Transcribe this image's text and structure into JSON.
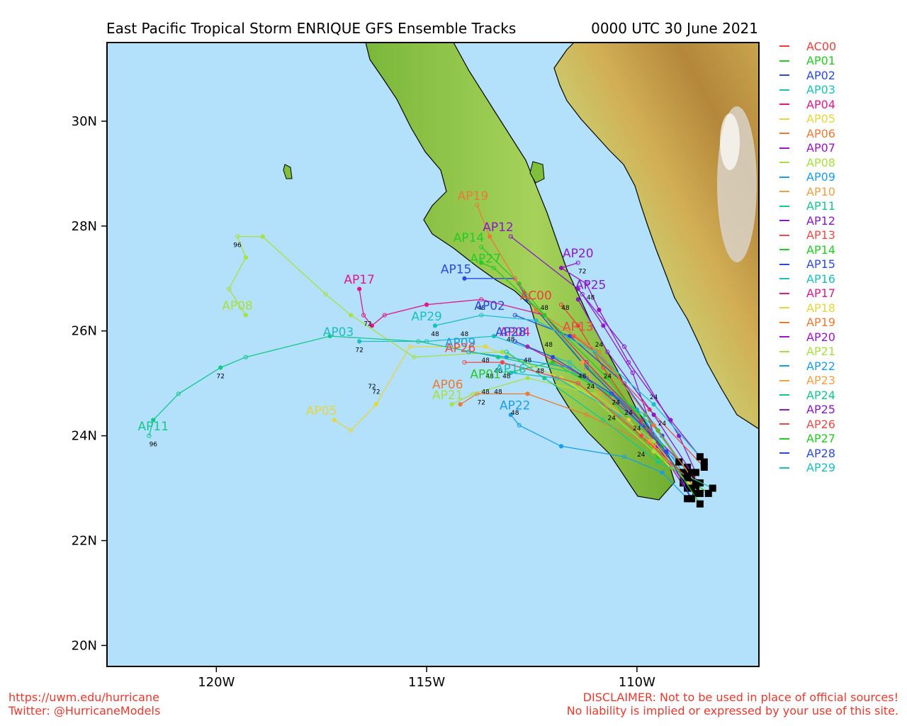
{
  "title": "East Pacific Tropical Storm ENRIQUE GFS Ensemble Tracks",
  "timestamp": "0000 UTC 30 June 2021",
  "footer": {
    "left_line1": "https://uwm.edu/hurricane",
    "left_line2": "Twitter: @HurricaneModels",
    "right_line1": "DISCLAIMER: Not to be used in place of official sources!",
    "right_line2": "No liability is implied or expressed by your use of this site."
  },
  "map": {
    "lon_range": [
      -122.6,
      -107.1
    ],
    "lat_range": [
      19.6,
      31.5
    ],
    "lat_ticks": [
      {
        "v": 20,
        "label": "20N"
      },
      {
        "v": 22,
        "label": "22N"
      },
      {
        "v": 24,
        "label": "24N"
      },
      {
        "v": 26,
        "label": "26N"
      },
      {
        "v": 28,
        "label": "28N"
      },
      {
        "v": 30,
        "label": "30N"
      }
    ],
    "lon_ticks": [
      {
        "v": -120,
        "label": "120W"
      },
      {
        "v": -115,
        "label": "115W"
      },
      {
        "v": -110,
        "label": "110W"
      }
    ],
    "ocean_color": "#b3e0fb",
    "land_color": "#8cc63f",
    "mountain_color": "#c8a24a"
  },
  "legend": [
    {
      "name": "AC00",
      "color": "#f03c3c"
    },
    {
      "name": "AP01",
      "color": "#22cc22"
    },
    {
      "name": "AP02",
      "color": "#2b48e0"
    },
    {
      "name": "AP03",
      "color": "#1bbfbf"
    },
    {
      "name": "AP04",
      "color": "#e0188c"
    },
    {
      "name": "AP05",
      "color": "#e6d63a"
    },
    {
      "name": "AP06",
      "color": "#ec7a32"
    },
    {
      "name": "AP07",
      "color": "#9a14c8"
    },
    {
      "name": "AP08",
      "color": "#a8e040"
    },
    {
      "name": "AP09",
      "color": "#1a9ee8"
    },
    {
      "name": "AP10",
      "color": "#f0a040"
    },
    {
      "name": "AP11",
      "color": "#14c88c"
    },
    {
      "name": "AP12",
      "color": "#8a18c8"
    },
    {
      "name": "AP13",
      "color": "#f04848"
    },
    {
      "name": "AP14",
      "color": "#22cc22"
    },
    {
      "name": "AP15",
      "color": "#2b48e0"
    },
    {
      "name": "AP16",
      "color": "#1bbfbf"
    },
    {
      "name": "AP17",
      "color": "#e0188c"
    },
    {
      "name": "AP18",
      "color": "#e6d63a"
    },
    {
      "name": "AP19",
      "color": "#ec7a32"
    },
    {
      "name": "AP20",
      "color": "#9a14c8"
    },
    {
      "name": "AP21",
      "color": "#a8e040"
    },
    {
      "name": "AP22",
      "color": "#1a9ee8"
    },
    {
      "name": "AP23",
      "color": "#f0a040"
    },
    {
      "name": "AP24",
      "color": "#14c88c"
    },
    {
      "name": "AP25",
      "color": "#8a18c8"
    },
    {
      "name": "AP26",
      "color": "#f04848"
    },
    {
      "name": "AP27",
      "color": "#22cc22"
    },
    {
      "name": "AP28",
      "color": "#2b48e0"
    },
    {
      "name": "AP29",
      "color": "#1bbfbf"
    }
  ],
  "tracks": [
    {
      "name": "AC00",
      "color": "#f03c3c",
      "pts": [
        [
          -108.6,
          23.0
        ],
        [
          -109.6,
          23.9
        ],
        [
          -110.8,
          25.3
        ],
        [
          -111.4,
          26.1
        ],
        [
          -111.8,
          26.5
        ]
      ],
      "label": [
        -112.4,
        26.6
      ]
    },
    {
      "name": "AP01",
      "color": "#22cc22",
      "pts": [
        [
          -108.3,
          22.9
        ],
        [
          -109.5,
          23.6
        ],
        [
          -110.7,
          24.8
        ],
        [
          -112.0,
          25.4
        ],
        [
          -113.1,
          25.2
        ]
      ],
      "label": [
        -113.6,
        25.1
      ]
    },
    {
      "name": "AP02",
      "color": "#2b48e0",
      "pts": [
        [
          -108.7,
          23.2
        ],
        [
          -109.4,
          24.0
        ],
        [
          -110.3,
          25.0
        ],
        [
          -111.6,
          25.9
        ],
        [
          -112.9,
          26.3
        ]
      ],
      "label": [
        -113.5,
        26.4
      ]
    },
    {
      "name": "AP03",
      "color": "#1bbfbf",
      "pts": [
        [
          -108.8,
          23.4
        ],
        [
          -109.9,
          24.2
        ],
        [
          -111.6,
          25.4
        ],
        [
          -113.4,
          25.9
        ],
        [
          -115.0,
          25.8
        ],
        [
          -116.6,
          25.8
        ]
      ],
      "label": [
        -117.1,
        25.9
      ]
    },
    {
      "name": "AP04",
      "color": "#e0188c",
      "pts": [
        [
          -108.5,
          23.1
        ],
        [
          -109.7,
          24.1
        ],
        [
          -111.2,
          25.1
        ],
        [
          -112.6,
          25.7
        ]
      ],
      "label": [
        -112.9,
        25.9
      ]
    },
    {
      "name": "AP05",
      "color": "#e6d63a",
      "pts": [
        [
          -108.9,
          23.1
        ],
        [
          -110.2,
          24.3
        ],
        [
          -111.8,
          25.1
        ],
        [
          -113.6,
          25.7
        ],
        [
          -115.4,
          25.7
        ],
        [
          -116.2,
          24.6
        ],
        [
          -116.8,
          24.1
        ],
        [
          -117.2,
          24.3
        ]
      ],
      "label": [
        -117.5,
        24.4
      ]
    },
    {
      "name": "AP06",
      "color": "#ec7a32",
      "pts": [
        [
          -108.6,
          23.0
        ],
        [
          -109.6,
          23.8
        ],
        [
          -111.2,
          24.4
        ],
        [
          -112.6,
          24.8
        ],
        [
          -113.8,
          24.8
        ],
        [
          -114.2,
          24.6
        ]
      ],
      "label": [
        -114.5,
        24.9
      ]
    },
    {
      "name": "AP07",
      "color": "#9a14c8",
      "pts": [
        [
          -108.7,
          22.8
        ],
        [
          -109.5,
          23.8
        ],
        [
          -110.1,
          25.2
        ],
        [
          -110.8,
          26.1
        ],
        [
          -111.3,
          26.7
        ]
      ],
      "label": null
    },
    {
      "name": "AP08",
      "color": "#a8e040",
      "pts": [
        [
          -108.5,
          22.9
        ],
        [
          -109.6,
          23.7
        ],
        [
          -111.3,
          24.9
        ],
        [
          -113.2,
          25.6
        ],
        [
          -115.3,
          25.5
        ],
        [
          -116.8,
          26.3
        ],
        [
          -117.4,
          26.7
        ],
        [
          -118.9,
          27.8
        ],
        [
          -119.5,
          27.8
        ],
        [
          -119.3,
          27.4
        ],
        [
          -119.7,
          26.8
        ],
        [
          -119.3,
          26.3
        ]
      ],
      "label": [
        -119.5,
        26.4
      ]
    },
    {
      "name": "AP09",
      "color": "#1a9ee8",
      "pts": [
        [
          -108.9,
          23.3
        ],
        [
          -110.0,
          24.5
        ],
        [
          -111.6,
          25.3
        ],
        [
          -113.1,
          25.5
        ],
        [
          -114.0,
          25.6
        ]
      ],
      "label": [
        -114.2,
        25.7
      ]
    },
    {
      "name": "AP11",
      "color": "#14c88c",
      "pts": [
        [
          -108.8,
          23.3
        ],
        [
          -109.8,
          24.4
        ],
        [
          -111.5,
          25.2
        ],
        [
          -113.3,
          25.5
        ],
        [
          -115.2,
          25.8
        ],
        [
          -117.3,
          25.9
        ],
        [
          -119.3,
          25.5
        ],
        [
          -119.9,
          25.3
        ],
        [
          -120.9,
          24.8
        ],
        [
          -121.5,
          24.3
        ],
        [
          -121.6,
          24.0
        ]
      ],
      "label": [
        -121.5,
        24.1
      ]
    },
    {
      "name": "AP12",
      "color": "#8a18c8",
      "pts": [
        [
          -108.6,
          23.3
        ],
        [
          -109.0,
          24.0
        ],
        [
          -110.3,
          25.7
        ],
        [
          -111.4,
          26.8
        ],
        [
          -113.0,
          27.8
        ]
      ],
      "label": [
        -113.3,
        27.9
      ]
    },
    {
      "name": "AP13",
      "color": "#f04848",
      "pts": [
        [
          -108.4,
          23.4
        ],
        [
          -109.7,
          24.5
        ],
        [
          -111.0,
          25.6
        ],
        [
          -111.5,
          25.9
        ]
      ],
      "label": [
        -111.4,
        26.0
      ]
    },
    {
      "name": "AP14",
      "color": "#22cc22",
      "pts": [
        [
          -108.6,
          23.1
        ],
        [
          -109.5,
          24.1
        ],
        [
          -111.3,
          25.4
        ],
        [
          -112.8,
          26.9
        ],
        [
          -113.7,
          27.6
        ]
      ],
      "label": [
        -114.0,
        27.7
      ]
    },
    {
      "name": "AP15",
      "color": "#2b48e0",
      "pts": [
        [
          -108.9,
          23.2
        ],
        [
          -109.8,
          24.2
        ],
        [
          -111.2,
          25.3
        ],
        [
          -112.6,
          26.6
        ],
        [
          -112.9,
          27.0
        ],
        [
          -114.1,
          27.0
        ]
      ],
      "label": [
        -114.3,
        27.1
      ]
    },
    {
      "name": "AP16",
      "color": "#1bbfbf",
      "pts": [
        [
          -109.0,
          23.5
        ],
        [
          -110.4,
          24.4
        ],
        [
          -111.9,
          25.1
        ],
        [
          -113.0,
          25.2
        ]
      ],
      "label": [
        -113.0,
        25.2
      ]
    },
    {
      "name": "AP17",
      "color": "#e0188c",
      "pts": [
        [
          -108.8,
          23.0
        ],
        [
          -109.9,
          24.3
        ],
        [
          -111.2,
          25.4
        ],
        [
          -112.2,
          26.3
        ],
        [
          -113.7,
          26.6
        ],
        [
          -115.0,
          26.5
        ],
        [
          -116.0,
          26.3
        ],
        [
          -116.3,
          26.1
        ],
        [
          -116.5,
          26.3
        ],
        [
          -116.6,
          26.8
        ]
      ],
      "label": [
        -116.6,
        26.9
      ]
    },
    {
      "name": "AP19",
      "color": "#ec7a32",
      "pts": [
        [
          -108.6,
          23.1
        ],
        [
          -109.6,
          24.2
        ],
        [
          -110.9,
          25.6
        ],
        [
          -112.4,
          26.4
        ],
        [
          -112.9,
          27.0
        ],
        [
          -113.5,
          27.8
        ],
        [
          -113.8,
          28.4
        ]
      ],
      "label": [
        -113.9,
        28.5
      ]
    },
    {
      "name": "AP20",
      "color": "#9a14c8",
      "pts": [
        [
          -108.4,
          23.5
        ],
        [
          -109.2,
          24.3
        ],
        [
          -110.2,
          25.4
        ],
        [
          -110.9,
          26.4
        ],
        [
          -111.2,
          26.9
        ],
        [
          -111.8,
          27.2
        ],
        [
          -111.4,
          27.3
        ]
      ],
      "label": [
        -111.4,
        27.4
      ]
    },
    {
      "name": "AP21",
      "color": "#a8e040",
      "pts": [
        [
          -108.6,
          22.9
        ],
        [
          -109.6,
          23.9
        ],
        [
          -111.0,
          24.8
        ],
        [
          -112.6,
          25.1
        ],
        [
          -113.9,
          24.8
        ],
        [
          -114.4,
          24.6
        ]
      ],
      "label": [
        -114.5,
        24.7
      ]
    },
    {
      "name": "AP22",
      "color": "#1a9ee8",
      "pts": [
        [
          -108.8,
          22.8
        ],
        [
          -109.4,
          23.3
        ],
        [
          -110.3,
          23.6
        ],
        [
          -111.8,
          23.8
        ],
        [
          -112.8,
          24.2
        ],
        [
          -113.0,
          24.4
        ]
      ],
      "label": [
        -112.9,
        24.5
      ]
    },
    {
      "name": "AP23",
      "color": "#f0a040",
      "pts": [
        [
          -108.7,
          23.0
        ],
        [
          -109.7,
          23.9
        ],
        [
          -110.9,
          24.8
        ],
        [
          -111.3,
          25.4
        ]
      ],
      "label": null
    },
    {
      "name": "AP24",
      "color": "#14c88c",
      "pts": [
        [
          -108.2,
          23.0
        ],
        [
          -109.5,
          23.5
        ],
        [
          -110.8,
          24.3
        ],
        [
          -112.2,
          25.1
        ],
        [
          -113.1,
          25.6
        ]
      ],
      "label": null
    },
    {
      "name": "AP25",
      "color": "#8a18c8",
      "pts": [
        [
          -108.7,
          23.3
        ],
        [
          -109.6,
          24.4
        ],
        [
          -110.7,
          25.6
        ],
        [
          -111.4,
          26.6
        ]
      ],
      "label": [
        -111.1,
        26.8
      ]
    },
    {
      "name": "AP26",
      "color": "#f04848",
      "pts": [
        [
          -108.8,
          23.2
        ],
        [
          -109.9,
          24.0
        ],
        [
          -111.4,
          25.0
        ],
        [
          -113.2,
          25.4
        ],
        [
          -114.1,
          25.4
        ]
      ],
      "label": [
        -114.2,
        25.6
      ]
    },
    {
      "name": "AP27",
      "color": "#22cc22",
      "pts": [
        [
          -108.5,
          22.7
        ],
        [
          -109.4,
          23.8
        ],
        [
          -110.7,
          25.1
        ],
        [
          -112.2,
          26.3
        ],
        [
          -113.4,
          27.2
        ],
        [
          -113.7,
          27.3
        ]
      ],
      "label": [
        -113.6,
        27.3
      ]
    },
    {
      "name": "AP28",
      "color": "#2b48e0",
      "pts": [
        [
          -108.7,
          22.8
        ],
        [
          -109.3,
          23.7
        ],
        [
          -110.6,
          24.8
        ],
        [
          -112.0,
          25.5
        ],
        [
          -112.9,
          25.8
        ]
      ],
      "label": [
        -113.0,
        25.9
      ]
    },
    {
      "name": "AP29",
      "color": "#1bbfbf",
      "pts": [
        [
          -108.5,
          23.6
        ],
        [
          -109.6,
          24.6
        ],
        [
          -111.0,
          25.6
        ],
        [
          -112.4,
          26.2
        ],
        [
          -113.7,
          26.3
        ],
        [
          -114.8,
          26.1
        ]
      ],
      "label": [
        -115.0,
        26.2
      ]
    }
  ],
  "hour_labels": [
    {
      "text": "96",
      "lon": -119.5,
      "lat": 27.6
    },
    {
      "text": "96",
      "lon": -121.5,
      "lat": 23.8
    },
    {
      "text": "72",
      "lon": -116.4,
      "lat": 26.1
    },
    {
      "text": "72",
      "lon": -116.6,
      "lat": 25.6
    },
    {
      "text": "72",
      "lon": -119.9,
      "lat": 25.1
    },
    {
      "text": "72",
      "lon": -116.3,
      "lat": 24.9
    },
    {
      "text": "72",
      "lon": -116.2,
      "lat": 24.8
    },
    {
      "text": "72",
      "lon": -113.7,
      "lat": 24.6
    },
    {
      "text": "72",
      "lon": -111.3,
      "lat": 27.1
    },
    {
      "text": "48",
      "lon": -113.7,
      "lat": 26.4
    },
    {
      "text": "48",
      "lon": -114.8,
      "lat": 25.9
    },
    {
      "text": "48",
      "lon": -114.1,
      "lat": 25.9
    },
    {
      "text": "48",
      "lon": -113.6,
      "lat": 25.4
    },
    {
      "text": "48",
      "lon": -113.3,
      "lat": 25.2
    },
    {
      "text": "48",
      "lon": -113.5,
      "lat": 25.1
    },
    {
      "text": "48",
      "lon": -113.1,
      "lat": 25.1
    },
    {
      "text": "48",
      "lon": -112.6,
      "lat": 25.4
    },
    {
      "text": "48",
      "lon": -112.3,
      "lat": 25.2
    },
    {
      "text": "48",
      "lon": -112.2,
      "lat": 26.4
    },
    {
      "text": "48",
      "lon": -111.7,
      "lat": 26.4
    },
    {
      "text": "48",
      "lon": -111.1,
      "lat": 26.6
    },
    {
      "text": "48",
      "lon": -112.9,
      "lat": 24.4
    },
    {
      "text": "48",
      "lon": -113.6,
      "lat": 24.8
    },
    {
      "text": "48",
      "lon": -113.3,
      "lat": 24.8
    },
    {
      "text": "48",
      "lon": -113.0,
      "lat": 25.8
    },
    {
      "text": "48",
      "lon": -112.1,
      "lat": 25.7
    },
    {
      "text": "48",
      "lon": -111.3,
      "lat": 25.1
    },
    {
      "text": "24",
      "lon": -110.9,
      "lat": 25.7
    },
    {
      "text": "24",
      "lon": -110.7,
      "lat": 25.1
    },
    {
      "text": "24",
      "lon": -110.5,
      "lat": 24.6
    },
    {
      "text": "24",
      "lon": -110.2,
      "lat": 24.4
    },
    {
      "text": "24",
      "lon": -110.0,
      "lat": 24.1
    },
    {
      "text": "24",
      "lon": -109.6,
      "lat": 24.7
    },
    {
      "text": "24",
      "lon": -109.4,
      "lat": 24.2
    },
    {
      "text": "24",
      "lon": -109.9,
      "lat": 23.6
    },
    {
      "text": "24",
      "lon": -111.1,
      "lat": 24.9
    },
    {
      "text": "24",
      "lon": -110.6,
      "lat": 24.3
    }
  ]
}
